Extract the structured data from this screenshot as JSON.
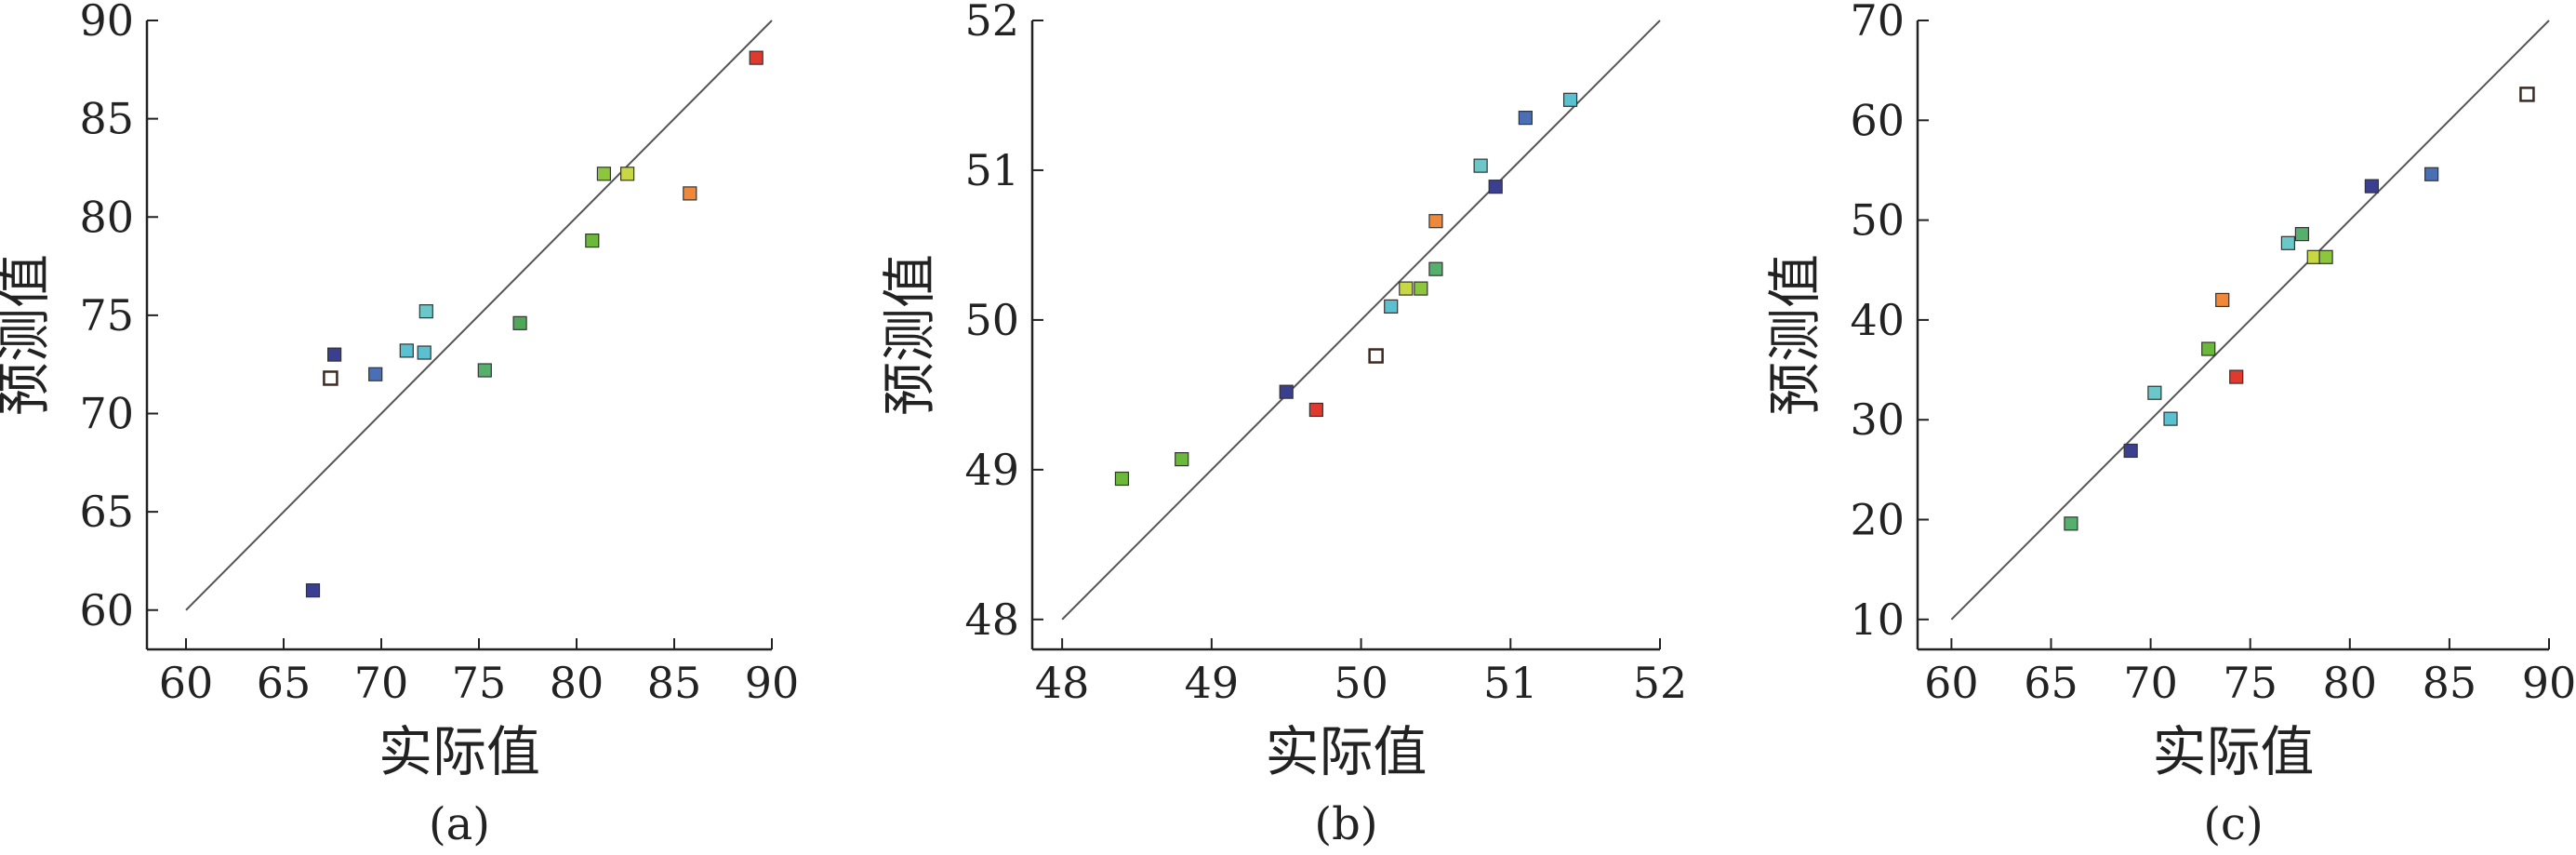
{
  "chart_data": [
    {
      "type": "scatter",
      "panel_label": "(a)",
      "xlabel": "实际值",
      "ylabel": "预测值",
      "xlim": [
        58,
        90
      ],
      "ylim": [
        58,
        90
      ],
      "xticks": [
        "60",
        "65",
        "70",
        "75",
        "80",
        "85",
        "90"
      ],
      "yticks": [
        "60",
        "65",
        "70",
        "75",
        "80",
        "85",
        "90"
      ],
      "reference_line": [
        [
          60,
          60
        ],
        [
          90,
          90
        ]
      ],
      "points": [
        {
          "x": 66.5,
          "y": 61.0,
          "color": "#3b3f8f",
          "hollow": false
        },
        {
          "x": 67.4,
          "y": 71.8,
          "color": "#5a3a2a",
          "hollow": true
        },
        {
          "x": 67.6,
          "y": 73.0,
          "color": "#3b3f8f",
          "hollow": false
        },
        {
          "x": 69.7,
          "y": 72.0,
          "color": "#4a6fb5",
          "hollow": false
        },
        {
          "x": 71.3,
          "y": 73.2,
          "color": "#5bc0cf",
          "hollow": false
        },
        {
          "x": 72.2,
          "y": 73.1,
          "color": "#5bc0cf",
          "hollow": false
        },
        {
          "x": 72.3,
          "y": 75.2,
          "color": "#6cc8c8",
          "hollow": false
        },
        {
          "x": 75.3,
          "y": 72.2,
          "color": "#55b06e",
          "hollow": false
        },
        {
          "x": 77.1,
          "y": 74.6,
          "color": "#4fa85a",
          "hollow": false
        },
        {
          "x": 80.8,
          "y": 78.8,
          "color": "#6bb83a",
          "hollow": false
        },
        {
          "x": 81.4,
          "y": 82.2,
          "color": "#8cc63f",
          "hollow": false
        },
        {
          "x": 82.6,
          "y": 82.2,
          "color": "#c8d845",
          "hollow": false
        },
        {
          "x": 85.8,
          "y": 81.2,
          "color": "#f0883a",
          "hollow": false
        },
        {
          "x": 89.2,
          "y": 88.1,
          "color": "#e03a2f",
          "hollow": false
        }
      ]
    },
    {
      "type": "scatter",
      "panel_label": "(b)",
      "xlabel": "实际值",
      "ylabel": "预测值",
      "xlim": [
        47.8,
        52
      ],
      "ylim": [
        47.8,
        52
      ],
      "xticks": [
        "48",
        "49",
        "50",
        "51",
        "52"
      ],
      "yticks": [
        "48",
        "49",
        "50",
        "51",
        "52"
      ],
      "reference_line": [
        [
          48,
          48
        ],
        [
          52,
          52
        ]
      ],
      "points": [
        {
          "x": 48.4,
          "y": 48.94,
          "color": "#6bb83a",
          "hollow": false
        },
        {
          "x": 48.8,
          "y": 49.07,
          "color": "#6bb83a",
          "hollow": false
        },
        {
          "x": 49.5,
          "y": 49.52,
          "color": "#3b3f8f",
          "hollow": false
        },
        {
          "x": 49.7,
          "y": 49.4,
          "color": "#e03a2f",
          "hollow": false
        },
        {
          "x": 50.1,
          "y": 49.76,
          "color": "#5a3a2a",
          "hollow": true
        },
        {
          "x": 50.2,
          "y": 50.09,
          "color": "#5bc0cf",
          "hollow": false
        },
        {
          "x": 50.3,
          "y": 50.21,
          "color": "#c8d845",
          "hollow": false
        },
        {
          "x": 50.4,
          "y": 50.21,
          "color": "#8cc63f",
          "hollow": false
        },
        {
          "x": 50.5,
          "y": 50.34,
          "color": "#55b06e",
          "hollow": false
        },
        {
          "x": 50.5,
          "y": 50.66,
          "color": "#f0883a",
          "hollow": false
        },
        {
          "x": 50.8,
          "y": 51.03,
          "color": "#6cc8c8",
          "hollow": false
        },
        {
          "x": 50.9,
          "y": 50.89,
          "color": "#3b3f8f",
          "hollow": false
        },
        {
          "x": 51.1,
          "y": 51.35,
          "color": "#4a6fb5",
          "hollow": false
        },
        {
          "x": 51.4,
          "y": 51.47,
          "color": "#5bc0cf",
          "hollow": false
        }
      ]
    },
    {
      "type": "scatter",
      "panel_label": "(c)",
      "xlabel": "实际值",
      "ylabel": "预测值",
      "xlim": [
        58.3,
        90
      ],
      "ylim": [
        7,
        70
      ],
      "xticks": [
        "60",
        "65",
        "70",
        "75",
        "80",
        "85",
        "90"
      ],
      "yticks": [
        "10",
        "20",
        "30",
        "40",
        "50",
        "60",
        "70"
      ],
      "reference_line": [
        [
          60,
          10
        ],
        [
          90,
          70
        ]
      ],
      "points": [
        {
          "x": 66.0,
          "y": 19.6,
          "color": "#55b06e",
          "hollow": false
        },
        {
          "x": 69.0,
          "y": 26.9,
          "color": "#3b3f8f",
          "hollow": false
        },
        {
          "x": 70.2,
          "y": 32.7,
          "color": "#6cc8c8",
          "hollow": false
        },
        {
          "x": 71.0,
          "y": 30.1,
          "color": "#5bc0cf",
          "hollow": false
        },
        {
          "x": 72.9,
          "y": 37.1,
          "color": "#6bb83a",
          "hollow": false
        },
        {
          "x": 73.6,
          "y": 42.0,
          "color": "#f0883a",
          "hollow": false
        },
        {
          "x": 74.3,
          "y": 34.3,
          "color": "#e03a2f",
          "hollow": false
        },
        {
          "x": 76.9,
          "y": 47.7,
          "color": "#6cc8c8",
          "hollow": false
        },
        {
          "x": 77.6,
          "y": 48.6,
          "color": "#55b06e",
          "hollow": false
        },
        {
          "x": 78.2,
          "y": 46.3,
          "color": "#c8d845",
          "hollow": false
        },
        {
          "x": 78.8,
          "y": 46.3,
          "color": "#8cc63f",
          "hollow": false
        },
        {
          "x": 81.1,
          "y": 53.4,
          "color": "#3b3f8f",
          "hollow": false
        },
        {
          "x": 84.1,
          "y": 54.6,
          "color": "#4a6fb5",
          "hollow": false
        },
        {
          "x": 88.9,
          "y": 62.6,
          "color": "#5a3a2a",
          "hollow": true
        }
      ]
    }
  ]
}
